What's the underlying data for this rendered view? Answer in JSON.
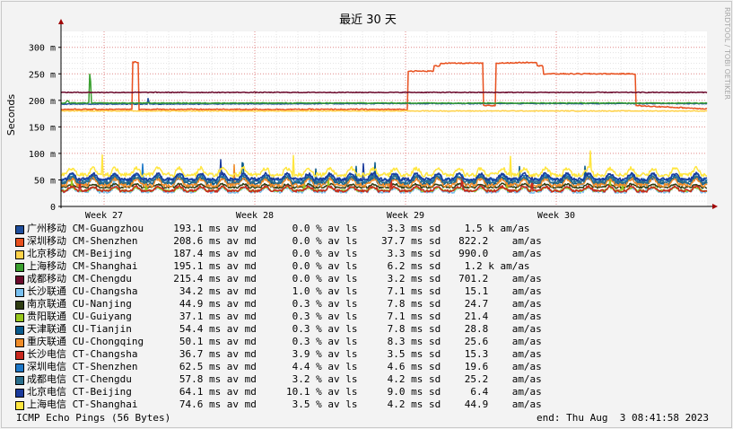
{
  "chart_data": {
    "type": "line",
    "title": "最近 30 天",
    "ylabel": "Seconds",
    "watermark": "RRDTOOL / TOBI OETIKER",
    "yticks": [
      {
        "value": 0,
        "label": "0"
      },
      {
        "value": 50,
        "label": "50 m"
      },
      {
        "value": 100,
        "label": "100 m"
      },
      {
        "value": 150,
        "label": "150 m"
      },
      {
        "value": 200,
        "label": "200 m"
      },
      {
        "value": 250,
        "label": "250 m"
      },
      {
        "value": 300,
        "label": "300 m"
      }
    ],
    "ylim": [
      0,
      330
    ],
    "xlim": [
      0,
      30
    ],
    "xticks": [
      {
        "value": 2,
        "label": "Week 27"
      },
      {
        "value": 9,
        "label": "Week 28"
      },
      {
        "value": 16,
        "label": "Week 29"
      },
      {
        "value": 23,
        "label": "Week 30"
      }
    ],
    "series": [
      {
        "name": "广州移动 CM-Guangzhou",
        "color": "#1f4e9c",
        "base": 193.1,
        "var": 1.5,
        "stats": "193.1 ms av md      0.0 % av ls     3.3 ms sd    1.5 k am/as",
        "steps": [
          [
            0,
            193.1
          ],
          [
            4,
            193.1
          ],
          [
            4.05,
            205
          ],
          [
            4.1,
            193.1
          ],
          [
            15.5,
            194
          ],
          [
            30,
            194
          ]
        ]
      },
      {
        "name": "深圳移动 CM-Shenzhen",
        "color": "#e8501e",
        "base": 208.6,
        "var": 2,
        "stats": "208.6 ms av md      0.0 % av ls    37.7 ms sd   822.2    am/as",
        "steps": [
          [
            0,
            183
          ],
          [
            3.3,
            183
          ],
          [
            3.3,
            272
          ],
          [
            3.6,
            272
          ],
          [
            3.6,
            183
          ],
          [
            16.1,
            183
          ],
          [
            16.1,
            255
          ],
          [
            17.3,
            255
          ],
          [
            17.3,
            265
          ],
          [
            17.6,
            265
          ],
          [
            17.6,
            270
          ],
          [
            19.6,
            270
          ],
          [
            19.6,
            190
          ],
          [
            20.2,
            190
          ],
          [
            20.2,
            270
          ],
          [
            22.1,
            272
          ],
          [
            22.1,
            265
          ],
          [
            22.4,
            265
          ],
          [
            22.4,
            250
          ],
          [
            26.7,
            250
          ],
          [
            26.7,
            190
          ],
          [
            30,
            184
          ]
        ]
      },
      {
        "name": "北京移动 CM-Beijing",
        "color": "#ffd24a",
        "base": 187.4,
        "var": 1.5,
        "stats": "187.4 ms av md      0.0 % av ls     3.3 ms sd   990.0    am/as",
        "steps": [
          [
            0,
            180
          ],
          [
            30,
            180
          ]
        ]
      },
      {
        "name": "上海移动 CM-Shanghai",
        "color": "#3aa02f",
        "base": 195.1,
        "var": 1.5,
        "stats": "195.1 ms av md      0.0 % av ls     6.2 ms sd    1.2 k am/as",
        "steps": [
          [
            0,
            195
          ],
          [
            0.2,
            195
          ],
          [
            0.3,
            200
          ],
          [
            0.4,
            195
          ],
          [
            1.3,
            195
          ],
          [
            1.35,
            276
          ],
          [
            1.4,
            195
          ],
          [
            30,
            195
          ]
        ]
      },
      {
        "name": "成都移动 CM-Chengdu",
        "color": "#6b0a2c",
        "base": 215.4,
        "var": 1.5,
        "stats": "215.4 ms av md      0.0 % av ls     3.2 ms sd   701.2    am/as",
        "steps": [
          [
            0,
            215
          ],
          [
            30,
            215
          ]
        ]
      },
      {
        "name": "长沙联通 CU-Changsha",
        "color": "#78c0f0",
        "base": 34.2,
        "var": 8,
        "stats": " 34.2 ms av md      1.0 % av ls     7.1 ms sd    15.1    am/as",
        "wave": true
      },
      {
        "name": "南京联通 CU-Nanjing",
        "color": "#2f3d12",
        "base": 44.9,
        "var": 6,
        "stats": " 44.9 ms av md      0.3 % av ls     7.8 ms sd    24.7    am/as",
        "wave": true
      },
      {
        "name": "贵阳联通 CU-Guiyang",
        "color": "#98c81e",
        "base": 37.1,
        "var": 6,
        "stats": " 37.1 ms av md      0.3 % av ls     7.1 ms sd    21.4    am/as",
        "wave": true
      },
      {
        "name": "天津联通 CU-Tianjin",
        "color": "#0a5a8c",
        "base": 54.4,
        "var": 10,
        "stats": " 54.4 ms av md      0.3 % av ls     7.8 ms sd    28.8    am/as",
        "wave": true
      },
      {
        "name": "重庆联通 CU-Chongqing",
        "color": "#f08c28",
        "base": 50.1,
        "var": 12,
        "stats": " 50.1 ms av md      0.3 % av ls     8.3 ms sd    25.6    am/as",
        "wave": true
      },
      {
        "name": "长沙电信 CT-Changsha",
        "color": "#c8281e",
        "base": 36.7,
        "var": 8,
        "stats": " 36.7 ms av md      3.9 % av ls     3.5 ms sd    15.3    am/as",
        "wave": true
      },
      {
        "name": "深圳电信 CT-Shenzhen",
        "color": "#1e78c8",
        "base": 62.5,
        "var": 10,
        "stats": " 62.5 ms av md      4.4 % av ls     4.6 ms sd    19.6    am/as",
        "wave": true
      },
      {
        "name": "成都电信 CT-Chengdu",
        "color": "#2a6e8c",
        "base": 57.8,
        "var": 10,
        "stats": " 57.8 ms av md      3.2 % av ls     4.2 ms sd    25.2    am/as",
        "wave": true
      },
      {
        "name": "北京电信 CT-Beijing",
        "color": "#1a3a9c",
        "base": 64.1,
        "var": 10,
        "stats": " 64.1 ms av md     10.1 % av ls     9.0 ms sd     6.4    am/as",
        "wave": true
      },
      {
        "name": "上海电信 CT-Shanghai",
        "color": "#ffe640",
        "base": 74.6,
        "var": 12,
        "stats": " 74.6 ms av md      3.5 % av ls     4.2 ms sd    44.9    am/as",
        "wave": true
      }
    ],
    "footer_left": "ICMP Echo Pings (56 Bytes)",
    "footer_right": "end: Thu Aug  3 08:41:58 2023"
  }
}
